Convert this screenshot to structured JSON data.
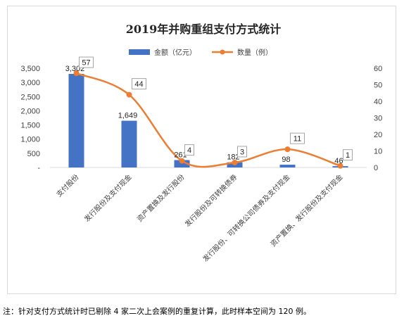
{
  "chart_data": {
    "type": "bar",
    "title": "2019年并购重组支付方式统计",
    "categories": [
      "支付股份",
      "发行股份及支付现金",
      "资产置换及发行股份",
      "发行股份及可转换债券",
      "发行股份、可转换公司债券及支付现金",
      "资产置换、发行股份及支付现金"
    ],
    "series": [
      {
        "name": "金额（亿元）",
        "type": "bar",
        "axis": "left",
        "color": "#4472C4",
        "values": [
          3302,
          1649,
          261,
          182,
          98,
          46
        ],
        "labels": [
          "3,302",
          "1,649",
          "261",
          "182",
          "98",
          "46"
        ]
      },
      {
        "name": "数量（例）",
        "type": "line",
        "axis": "right",
        "color": "#ED7D31",
        "values": [
          57,
          44,
          4,
          3,
          11,
          1
        ],
        "labels": [
          "57",
          "44",
          "4",
          "3",
          "11",
          "1"
        ]
      }
    ],
    "y_left": {
      "range": [
        0,
        3500
      ],
      "ticks": [
        "-",
        "500",
        "1,000",
        "1,500",
        "2,000",
        "2,500",
        "3,000",
        "3,500"
      ]
    },
    "y_right": {
      "range": [
        0,
        60
      ],
      "ticks": [
        "0",
        "10",
        "20",
        "30",
        "40",
        "50",
        "60"
      ]
    },
    "legend_position": "top",
    "grid": false
  },
  "footnote": "注：针对支付方式统计时已剔除 4 家二次上会案例的重复计算，此时样本空间为 120 例。"
}
